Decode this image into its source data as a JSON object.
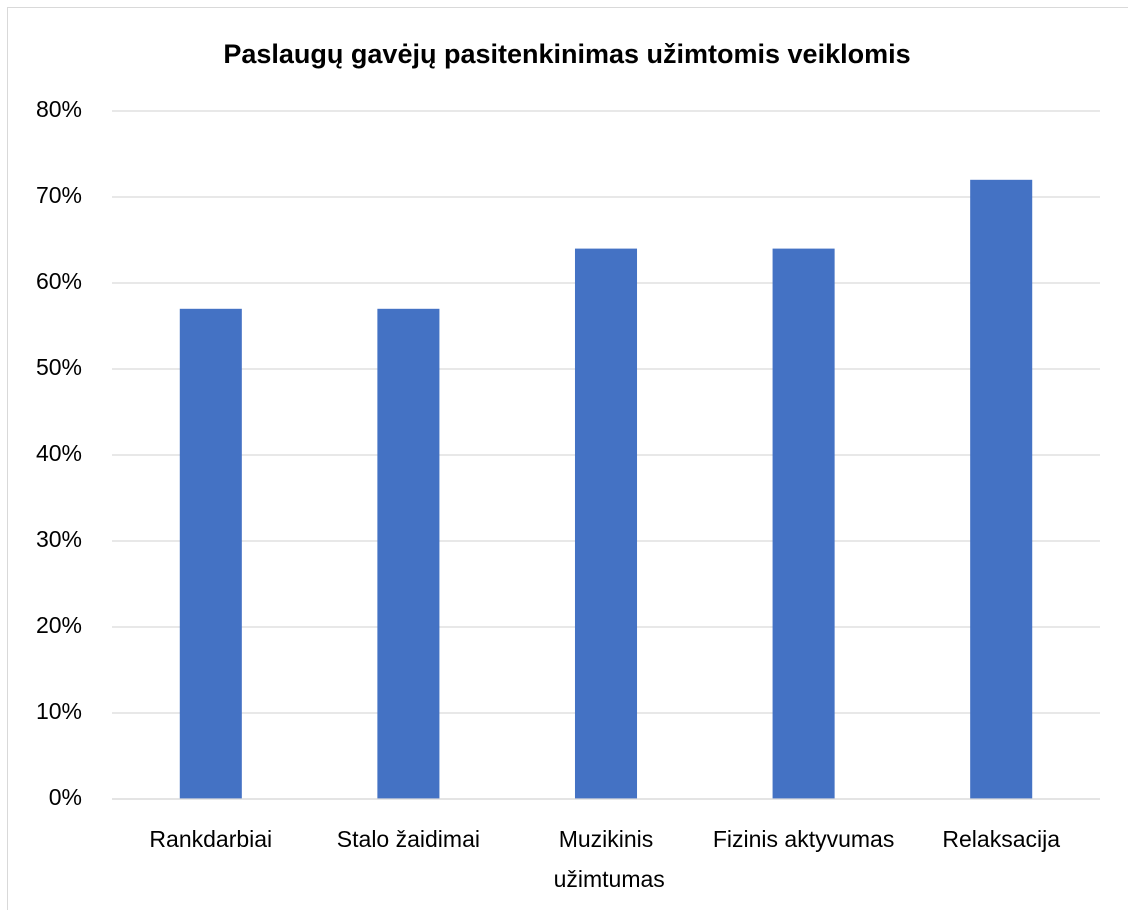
{
  "chart_data": {
    "type": "bar",
    "title": "Paslaugų gavėjų pasitenkinimas užimtomis veiklomis",
    "categories": [
      "Rankdarbiai",
      "Stalo žaidimai",
      "Muzikinis užimtumas",
      "Fizinis aktyvumas",
      "Relaksacija"
    ],
    "values": [
      57,
      57,
      64,
      64,
      72
    ],
    "color": "#4472c4",
    "ylim": [
      0,
      80
    ],
    "yticks": [
      {
        "value": 0,
        "label": "0%"
      },
      {
        "value": 10,
        "label": "10%"
      },
      {
        "value": 20,
        "label": "20%"
      },
      {
        "value": 30,
        "label": "30%"
      },
      {
        "value": 40,
        "label": "40%"
      },
      {
        "value": 50,
        "label": "50%"
      },
      {
        "value": 60,
        "label": "60%"
      },
      {
        "value": 70,
        "label": "70%"
      },
      {
        "value": 80,
        "label": "80%"
      }
    ],
    "grid": true
  }
}
